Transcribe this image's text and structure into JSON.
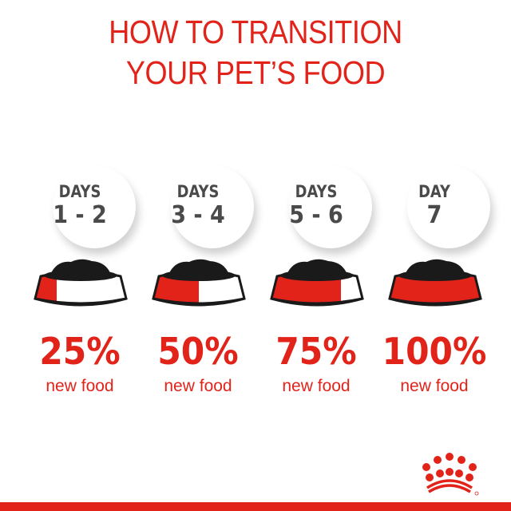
{
  "title": {
    "line1": "HOW TO TRANSITION",
    "line2": "YOUR PET’S FOOD"
  },
  "colors": {
    "accent": "#e2231a",
    "text_gray": "#4a4a4a",
    "kibble": "#1a1a1a"
  },
  "steps": [
    {
      "label": "DAYS",
      "range": "1 - 2",
      "percent": "25%",
      "caption": "new food",
      "new_fraction": 0.25
    },
    {
      "label": "DAYS",
      "range": "3 - 4",
      "percent": "50%",
      "caption": "new food",
      "new_fraction": 0.5
    },
    {
      "label": "DAYS",
      "range": "5 - 6",
      "percent": "75%",
      "caption": "new food",
      "new_fraction": 0.75
    },
    {
      "label": "DAY",
      "range": "7",
      "percent": "100%",
      "caption": "new food",
      "new_fraction": 1.0
    }
  ],
  "logo": {
    "name": "crown-logo"
  }
}
